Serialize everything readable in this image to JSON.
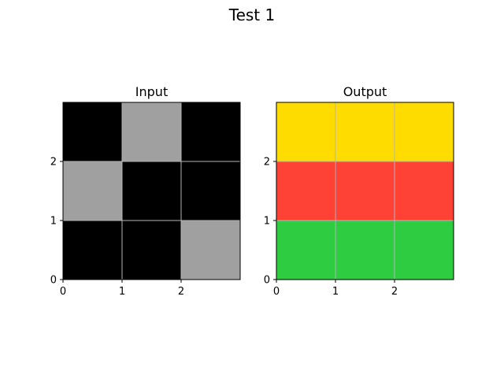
{
  "figure": {
    "title": "Test 1"
  },
  "colors": {
    "0": "#000000",
    "5": "#a0a0a0",
    "4": "#ffdc00",
    "2": "#ff4136",
    "3": "#2ecc40",
    "grid": "#b4b4b4",
    "spine": "#000000"
  },
  "chart_data": [
    {
      "type": "heatmap",
      "title": "Input",
      "xlim": [
        0,
        3
      ],
      "ylim": [
        0,
        3
      ],
      "xticks": [
        "0",
        "1",
        "2"
      ],
      "yticks": [
        "0",
        "1",
        "2"
      ],
      "grid": true,
      "rows_top_to_bottom": [
        [
          0,
          5,
          0
        ],
        [
          5,
          0,
          0
        ],
        [
          0,
          0,
          5
        ]
      ]
    },
    {
      "type": "heatmap",
      "title": "Output",
      "xlim": [
        0,
        3
      ],
      "ylim": [
        0,
        3
      ],
      "xticks": [
        "0",
        "1",
        "2"
      ],
      "yticks": [
        "0",
        "1",
        "2"
      ],
      "grid": true,
      "rows_top_to_bottom": [
        [
          4,
          4,
          4
        ],
        [
          2,
          2,
          2
        ],
        [
          3,
          3,
          3
        ]
      ]
    }
  ]
}
